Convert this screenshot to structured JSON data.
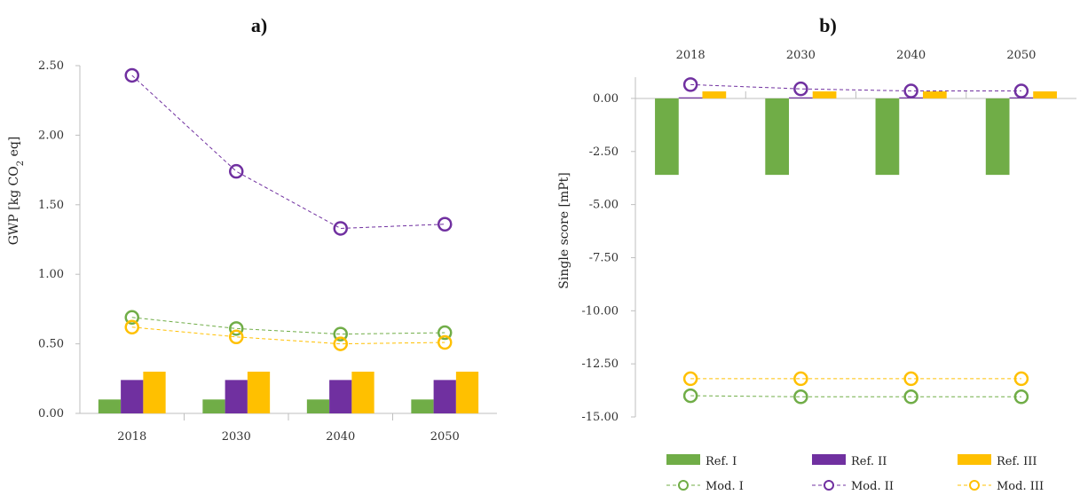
{
  "colors": {
    "green": "#70ad47",
    "purple": "#7030a0",
    "gold": "#ffc000",
    "axis": "#bfbfbf",
    "text": "#333333"
  },
  "chart_data": [
    {
      "panel": "a)",
      "type": "bar",
      "title": "a)",
      "xlabel": "",
      "ylabel": "GWP [kg CO",
      "ylabel_sub": "2",
      "ylabel_tail": " eq]",
      "categories": [
        "2018",
        "2030",
        "2040",
        "2050"
      ],
      "ylim": [
        0,
        2.5
      ],
      "yticks": [
        0,
        0.5,
        1.0,
        1.5,
        2.0,
        2.5
      ],
      "ytick_labels": [
        "0.00",
        "0.50",
        "1.00",
        "1.50",
        "2.00",
        "2.50"
      ],
      "category_axis": "bottom",
      "series": [
        {
          "name": "Ref. I",
          "kind": "bar",
          "color": "green",
          "values": [
            0.1,
            0.1,
            0.1,
            0.1
          ]
        },
        {
          "name": "Ref. II",
          "kind": "bar",
          "color": "purple",
          "values": [
            0.24,
            0.24,
            0.24,
            0.24
          ]
        },
        {
          "name": "Ref. III",
          "kind": "bar",
          "color": "gold",
          "values": [
            0.3,
            0.3,
            0.3,
            0.3
          ]
        },
        {
          "name": "Mod. I",
          "kind": "line",
          "color": "green",
          "values": [
            0.69,
            0.61,
            0.57,
            0.58
          ]
        },
        {
          "name": "Mod. II",
          "kind": "line",
          "color": "purple",
          "values": [
            2.43,
            1.74,
            1.33,
            1.36
          ]
        },
        {
          "name": "Mod. III",
          "kind": "line",
          "color": "gold",
          "values": [
            0.62,
            0.55,
            0.5,
            0.51
          ]
        }
      ],
      "grid": false,
      "legend": "none"
    },
    {
      "panel": "b)",
      "type": "bar",
      "title": "b)",
      "xlabel": "",
      "ylabel": "Single score [mPt]",
      "categories": [
        "2018",
        "2030",
        "2040",
        "2050"
      ],
      "ylim": [
        -15,
        1
      ],
      "yticks": [
        0,
        -2.5,
        -5,
        -7.5,
        -10,
        -12.5,
        -15
      ],
      "ytick_labels": [
        "0.00",
        "-2.50",
        "-5.00",
        "-7.50",
        "-10.00",
        "-12.50",
        "-15.00"
      ],
      "category_axis": "top",
      "series": [
        {
          "name": "Ref. I",
          "kind": "bar",
          "color": "green",
          "values": [
            -3.6,
            -3.6,
            -3.6,
            -3.6
          ]
        },
        {
          "name": "Ref. II",
          "kind": "bar",
          "color": "purple",
          "values": [
            0.05,
            0.05,
            0.05,
            0.05
          ]
        },
        {
          "name": "Ref. III",
          "kind": "bar",
          "color": "gold",
          "values": [
            0.33,
            0.33,
            0.33,
            0.33
          ]
        },
        {
          "name": "Mod. I",
          "kind": "line",
          "color": "green",
          "values": [
            -14.0,
            -14.05,
            -14.05,
            -14.05
          ]
        },
        {
          "name": "Mod. II",
          "kind": "line",
          "color": "purple",
          "values": [
            0.65,
            0.45,
            0.35,
            0.35
          ]
        },
        {
          "name": "Mod. III",
          "kind": "line",
          "color": "gold",
          "values": [
            -13.2,
            -13.2,
            -13.2,
            -13.2
          ]
        }
      ],
      "grid": false,
      "legend": "bottom"
    }
  ],
  "legend": {
    "items": [
      {
        "label": "Ref. I",
        "kind": "bar",
        "color": "green"
      },
      {
        "label": "Ref. II",
        "kind": "bar",
        "color": "purple"
      },
      {
        "label": "Ref. III",
        "kind": "bar",
        "color": "gold"
      },
      {
        "label": "Mod. I",
        "kind": "line",
        "color": "green"
      },
      {
        "label": "Mod. II",
        "kind": "line",
        "color": "purple"
      },
      {
        "label": "Mod. III",
        "kind": "line",
        "color": "gold"
      }
    ]
  }
}
